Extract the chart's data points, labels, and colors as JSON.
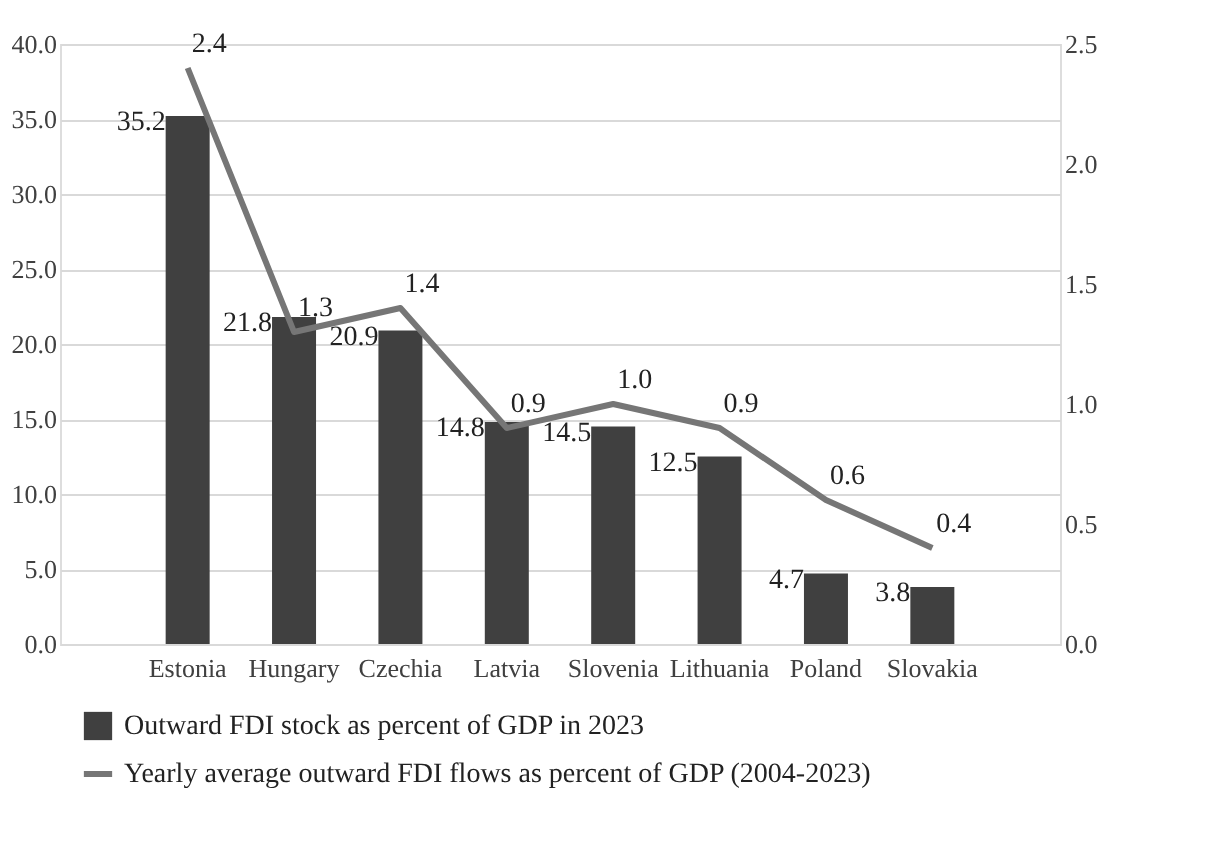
{
  "chart_data": {
    "type": "bar",
    "categories": [
      "Estonia",
      "Hungary",
      "Czechia",
      "Latvia",
      "Slovenia",
      "Lithuania",
      "Poland",
      "Slovakia"
    ],
    "series": [
      {
        "name": "Outward FDI stock as percent of GDP in 2023",
        "color": "#404040",
        "values": [
          35.2,
          21.8,
          20.9,
          14.8,
          14.5,
          12.5,
          4.7,
          3.8
        ]
      },
      {
        "name": "Yearly average outward FDI flows as percent of GDP (2004-2023)",
        "type": "line",
        "axis": "y2",
        "color": "#767676",
        "values": [
          2.4,
          1.3,
          1.4,
          0.9,
          1.0,
          0.9,
          0.6,
          0.4
        ],
        "value_labels": [
          "2.4",
          "1.3",
          "1.4",
          "0.9",
          "1.0",
          "0.9",
          "0.6",
          "0.4"
        ]
      }
    ],
    "ylim": [
      0,
      40
    ],
    "yticks": [
      {
        "value": 0,
        "label": "0.0"
      },
      {
        "value": 5,
        "label": "5.0"
      },
      {
        "value": 10,
        "label": "10.0"
      },
      {
        "value": 15,
        "label": "15.0"
      },
      {
        "value": 20,
        "label": "20.0"
      },
      {
        "value": 25,
        "label": "25.0"
      },
      {
        "value": 30,
        "label": "30.0"
      },
      {
        "value": 35,
        "label": "35.0"
      },
      {
        "value": 40,
        "label": "40.0"
      }
    ],
    "y2lim": [
      0,
      2.5
    ],
    "y2ticks": [
      {
        "value": 0,
        "label": "0.0"
      },
      {
        "value": 0.5,
        "label": "0.5"
      },
      {
        "value": 1,
        "label": "1.0"
      },
      {
        "value": 1.5,
        "label": "1.5"
      },
      {
        "value": 2,
        "label": "2.0"
      },
      {
        "value": 2.5,
        "label": "2.5"
      }
    ],
    "data_labels": true,
    "grid": "y",
    "legend": "bottom",
    "marker": "none",
    "line_style": "solid"
  }
}
